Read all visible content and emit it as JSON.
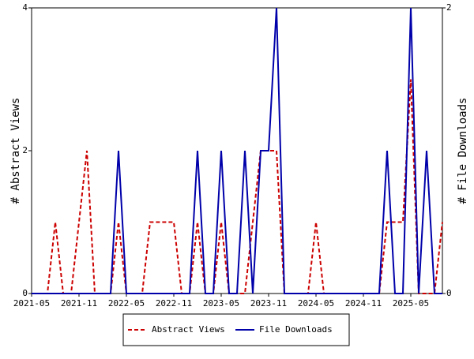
{
  "chart_data": {
    "type": "line",
    "categories": [
      "2021-05",
      null,
      null,
      null,
      null,
      null,
      "2021-11",
      null,
      null,
      null,
      null,
      null,
      "2022-05",
      null,
      null,
      null,
      null,
      null,
      "2022-11",
      null,
      null,
      null,
      null,
      null,
      "2023-05",
      null,
      null,
      null,
      null,
      null,
      "2023-11",
      null,
      null,
      null,
      null,
      null,
      "2024-05",
      null,
      null,
      null,
      null,
      null,
      "2024-11",
      null,
      null,
      null,
      null,
      null,
      "2025-05",
      null,
      null,
      null,
      null
    ],
    "y_label": "# Abstract Views",
    "y2_label": "# File Downloads",
    "ylim": [
      0,
      4
    ],
    "yticks": [
      0,
      2,
      4
    ],
    "y2lim": [
      0,
      2
    ],
    "y2ticks": [
      0,
      2
    ],
    "legend": "bottom",
    "series": [
      {
        "name": "Abstract Views",
        "color": "#cc0000",
        "dash": true,
        "values": [
          0,
          0,
          0,
          1,
          0,
          0,
          1,
          2,
          0,
          0,
          0,
          1,
          0,
          0,
          0,
          1,
          1,
          1,
          1,
          0,
          0,
          1,
          0,
          0,
          1,
          0,
          0,
          0,
          1,
          2,
          2,
          2,
          0,
          0,
          0,
          0,
          1,
          0,
          0,
          0,
          0,
          0,
          0,
          0,
          0,
          1,
          1,
          1,
          3,
          0,
          0,
          0,
          1
        ]
      },
      {
        "name": "File Downloads",
        "color": "#0000aa",
        "dash": false,
        "axis": "y2",
        "values": [
          0,
          0,
          0,
          0,
          0,
          0,
          0,
          0,
          0,
          0,
          0,
          1,
          0,
          0,
          0,
          0,
          0,
          0,
          0,
          0,
          0,
          1,
          0,
          0,
          1,
          0,
          0,
          1,
          0,
          1,
          1,
          2,
          0,
          0,
          0,
          0,
          0,
          0,
          0,
          0,
          0,
          0,
          0,
          0,
          0,
          1,
          0,
          0,
          2,
          0,
          1,
          0,
          0
        ]
      }
    ]
  }
}
